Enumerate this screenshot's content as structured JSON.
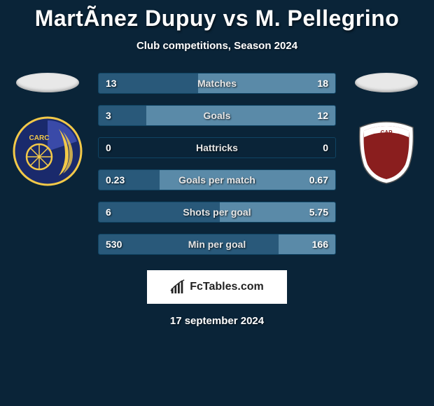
{
  "background_color": "#0a2438",
  "title": "MartÃnez Dupuy vs M. Pellegrino",
  "title_fontsize": 32,
  "title_color": "#ffffff",
  "subtitle": "Club competitions, Season 2024",
  "subtitle_fontsize": 15,
  "date": "17 september 2024",
  "watermark": "FcTables.com",
  "left": {
    "club_colors": {
      "primary": "#1a2a6c",
      "secondary": "#f3c948",
      "stripe": "#3a4aa8"
    },
    "club_initials": "CARC"
  },
  "right": {
    "club_colors": {
      "primary": "#ffffff",
      "secondary": "#8a1e1e"
    },
    "club_initials": "CAP"
  },
  "bars": {
    "border_color": "#104463",
    "left_fill": "#29597a",
    "right_fill": "#5a8aa8",
    "track_color": "#0a2438",
    "height": 30,
    "rows": [
      {
        "label": "Matches",
        "left_val": "13",
        "right_val": "18",
        "left_pct": 41.9,
        "right_pct": 58.1
      },
      {
        "label": "Goals",
        "left_val": "3",
        "right_val": "12",
        "left_pct": 20.0,
        "right_pct": 80.0
      },
      {
        "label": "Hattricks",
        "left_val": "0",
        "right_val": "0",
        "left_pct": 0.0,
        "right_pct": 0.0
      },
      {
        "label": "Goals per match",
        "left_val": "0.23",
        "right_val": "0.67",
        "left_pct": 25.6,
        "right_pct": 74.4
      },
      {
        "label": "Shots per goal",
        "left_val": "6",
        "right_val": "5.75",
        "left_pct": 51.1,
        "right_pct": 48.9
      },
      {
        "label": "Min per goal",
        "left_val": "530",
        "right_val": "166",
        "left_pct": 76.1,
        "right_pct": 23.9
      }
    ]
  }
}
